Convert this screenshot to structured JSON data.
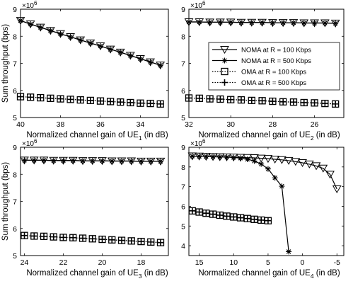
{
  "ylabel": "Sum throughput (bps)",
  "exponent": "×10",
  "exponent_power": "6",
  "legend": [
    {
      "label": "NOMA at R = 100 Kbps",
      "marker": "triangle",
      "line": "solid"
    },
    {
      "label": "NOMA at R = 500 Kbps",
      "marker": "asterisk",
      "line": "solid"
    },
    {
      "label": "OMA at R = 100 Kbps",
      "marker": "square",
      "line": "dotted"
    },
    {
      "label": "OMA at R = 500 Kbps",
      "marker": "plus",
      "line": "dotted"
    }
  ],
  "panels": [
    {
      "xlabel_pre": "Normalized channel gain of UE",
      "xlabel_sub": "1",
      "xlabel_post": " (in dB)",
      "xlim": [
        40,
        32.6
      ],
      "ylim": [
        5,
        9
      ],
      "xticks": [
        40,
        38,
        36,
        34
      ],
      "yticks": [
        5,
        6,
        7,
        8,
        9
      ]
    },
    {
      "xlabel_pre": "Normalized channel gain of UE",
      "xlabel_sub": "2",
      "xlabel_post": " (in dB)",
      "xlim": [
        32,
        24.6
      ],
      "ylim": [
        5,
        9
      ],
      "xticks": [
        32,
        30,
        28,
        26
      ],
      "yticks": [
        5,
        6,
        7,
        8,
        9
      ]
    },
    {
      "xlabel_pre": "Normalized channel gain of UE",
      "xlabel_sub": "3",
      "xlabel_post": " (in dB)",
      "xlim": [
        24.2,
        16.6
      ],
      "ylim": [
        5,
        9
      ],
      "xticks": [
        24,
        22,
        20,
        18
      ],
      "yticks": [
        5,
        6,
        7,
        8,
        9
      ]
    },
    {
      "xlabel_pre": "Normalized channel gain of UE",
      "xlabel_sub": "4",
      "xlabel_post": " (in dB)",
      "xlim": [
        16.5,
        -6
      ],
      "ylim": [
        3.5,
        9
      ],
      "xticks": [
        15,
        10,
        5,
        0,
        -5
      ],
      "yticks": [
        4,
        5,
        6,
        7,
        8,
        9
      ]
    }
  ],
  "chart_data": [
    {
      "type": "line",
      "xlabel": "Normalized channel gain of UE1 (in dB)",
      "ylabel": "Sum throughput (bps)",
      "y_scale_note": "×10^6",
      "x_reversed": true,
      "xlim": [
        40,
        32.6
      ],
      "ylim": [
        5,
        9
      ],
      "x": [
        40,
        39.5,
        39,
        38.5,
        38,
        37.5,
        37,
        36.5,
        36,
        35.5,
        35,
        34.5,
        34,
        33.5,
        33
      ],
      "series": [
        {
          "name": "NOMA at R = 100 Kbps",
          "values": [
            8.58,
            8.45,
            8.33,
            8.21,
            8.09,
            7.98,
            7.86,
            7.75,
            7.64,
            7.52,
            7.41,
            7.29,
            7.17,
            7.05,
            6.93
          ]
        },
        {
          "name": "NOMA at R = 500 Kbps",
          "values": [
            8.58,
            8.45,
            8.33,
            8.21,
            8.09,
            7.98,
            7.86,
            7.75,
            7.64,
            7.52,
            7.41,
            7.29,
            7.17,
            7.05,
            6.93
          ]
        },
        {
          "name": "OMA at R = 100 Kbps",
          "values": [
            5.77,
            5.75,
            5.73,
            5.71,
            5.69,
            5.67,
            5.65,
            5.63,
            5.61,
            5.59,
            5.57,
            5.55,
            5.53,
            5.52,
            5.5
          ]
        },
        {
          "name": "OMA at R = 500 Kbps",
          "values": [
            5.77,
            5.75,
            5.73,
            5.71,
            5.69,
            5.67,
            5.65,
            5.63,
            5.61,
            5.59,
            5.57,
            5.55,
            5.53,
            5.52,
            5.5
          ]
        }
      ]
    },
    {
      "type": "line",
      "xlabel": "Normalized channel gain of UE2 (in dB)",
      "ylabel": "",
      "y_scale_note": "×10^6",
      "x_reversed": true,
      "xlim": [
        32,
        24.6
      ],
      "ylim": [
        5,
        9
      ],
      "x": [
        32,
        31.5,
        31,
        30.5,
        30,
        29.5,
        29,
        28.5,
        28,
        27.5,
        27,
        26.5,
        26,
        25.5,
        25
      ],
      "series": [
        {
          "name": "NOMA at R = 100 Kbps",
          "values": [
            8.53,
            8.53,
            8.52,
            8.52,
            8.52,
            8.51,
            8.51,
            8.51,
            8.5,
            8.5,
            8.5,
            8.49,
            8.49,
            8.49,
            8.48
          ]
        },
        {
          "name": "NOMA at R = 500 Kbps",
          "values": [
            8.53,
            8.53,
            8.52,
            8.52,
            8.52,
            8.51,
            8.51,
            8.51,
            8.5,
            8.5,
            8.5,
            8.49,
            8.49,
            8.49,
            8.48
          ]
        },
        {
          "name": "OMA at R = 100 Kbps",
          "values": [
            5.72,
            5.71,
            5.69,
            5.68,
            5.66,
            5.65,
            5.63,
            5.62,
            5.6,
            5.58,
            5.57,
            5.55,
            5.54,
            5.52,
            5.5
          ]
        },
        {
          "name": "OMA at R = 500 Kbps",
          "values": [
            5.72,
            5.71,
            5.69,
            5.68,
            5.66,
            5.65,
            5.63,
            5.62,
            5.6,
            5.58,
            5.57,
            5.55,
            5.54,
            5.52,
            5.5
          ]
        }
      ]
    },
    {
      "type": "line",
      "xlabel": "Normalized channel gain of UE3 (in dB)",
      "ylabel": "Sum throughput (bps)",
      "y_scale_note": "×10^6",
      "x_reversed": true,
      "xlim": [
        24.2,
        16.6
      ],
      "ylim": [
        5,
        9
      ],
      "x": [
        24,
        23.5,
        23,
        22.5,
        22,
        21.5,
        21,
        20.5,
        20,
        19.5,
        19,
        18.5,
        18,
        17.5,
        17
      ],
      "series": [
        {
          "name": "NOMA at R = 100 Kbps",
          "values": [
            8.52,
            8.52,
            8.52,
            8.51,
            8.51,
            8.51,
            8.5,
            8.5,
            8.5,
            8.49,
            8.49,
            8.49,
            8.48,
            8.48,
            8.48
          ]
        },
        {
          "name": "NOMA at R = 500 Kbps",
          "values": [
            8.52,
            8.52,
            8.52,
            8.51,
            8.51,
            8.51,
            8.5,
            8.5,
            8.5,
            8.49,
            8.49,
            8.49,
            8.48,
            8.48,
            8.48
          ]
        },
        {
          "name": "OMA at R = 100 Kbps",
          "values": [
            5.74,
            5.72,
            5.71,
            5.69,
            5.67,
            5.66,
            5.64,
            5.62,
            5.6,
            5.58,
            5.56,
            5.54,
            5.52,
            5.5,
            5.48
          ]
        },
        {
          "name": "OMA at R = 500 Kbps",
          "values": [
            5.74,
            5.72,
            5.71,
            5.69,
            5.67,
            5.66,
            5.64,
            5.62,
            5.6,
            5.58,
            5.56,
            5.54,
            5.52,
            5.5,
            5.48
          ]
        }
      ]
    },
    {
      "type": "line",
      "xlabel": "Normalized channel gain of UE4 (in dB)",
      "ylabel": "",
      "y_scale_note": "×10^6",
      "x_reversed": true,
      "xlim": [
        16.5,
        -6
      ],
      "ylim": [
        3.5,
        9
      ],
      "series": [
        {
          "name": "NOMA at R = 100 Kbps",
          "x": [
            16,
            15,
            14,
            13,
            12,
            11,
            10,
            9,
            8,
            7,
            6,
            5,
            4,
            3,
            2,
            1,
            0,
            -1,
            -2,
            -3,
            -4,
            -5
          ],
          "values": [
            8.55,
            8.54,
            8.53,
            8.52,
            8.51,
            8.5,
            8.49,
            8.48,
            8.47,
            8.46,
            8.44,
            8.42,
            8.39,
            8.36,
            8.32,
            8.27,
            8.21,
            8.14,
            8.05,
            7.93,
            7.62,
            6.88
          ]
        },
        {
          "name": "NOMA at R = 500 Kbps",
          "x": [
            16,
            15,
            14,
            13,
            12,
            11,
            10,
            9,
            8,
            7,
            6,
            5,
            4,
            3,
            2
          ],
          "values": [
            8.55,
            8.54,
            8.53,
            8.52,
            8.51,
            8.5,
            8.48,
            8.45,
            8.39,
            8.3,
            8.15,
            7.9,
            7.45,
            7.02,
            3.7
          ]
        },
        {
          "name": "OMA at R = 100 Kbps",
          "x": [
            16,
            15,
            14,
            13,
            12,
            11,
            10,
            9,
            8,
            7,
            6,
            5
          ],
          "values": [
            5.77,
            5.71,
            5.65,
            5.6,
            5.55,
            5.5,
            5.46,
            5.42,
            5.38,
            5.34,
            5.3,
            5.27
          ]
        },
        {
          "name": "OMA at R = 500 Kbps",
          "x": [
            16,
            15,
            14,
            13,
            12,
            11,
            10,
            9,
            8,
            7,
            6,
            5
          ],
          "values": [
            5.77,
            5.71,
            5.65,
            5.6,
            5.55,
            5.5,
            5.46,
            5.42,
            5.38,
            5.34,
            5.3,
            5.27
          ]
        }
      ]
    }
  ]
}
